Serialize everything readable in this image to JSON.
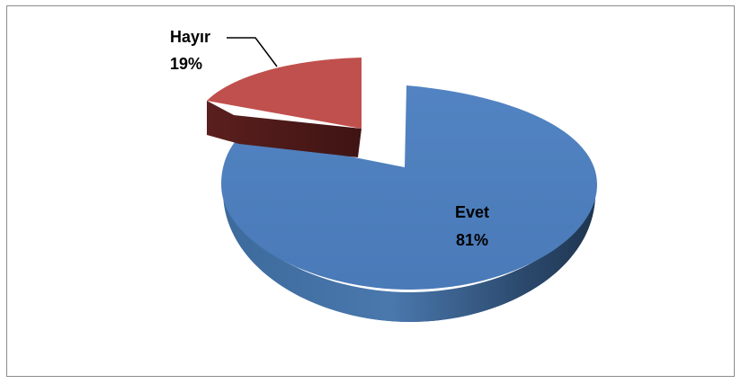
{
  "chart_data": {
    "type": "pie",
    "style": "3d-exploded",
    "slices": [
      {
        "label": "Evet",
        "value": 81,
        "percent_label": "81%",
        "color": "#4f81bd"
      },
      {
        "label": "Hayır",
        "value": 19,
        "percent_label": "19%",
        "color": "#c0504d"
      }
    ],
    "title": "",
    "legend": "none"
  }
}
